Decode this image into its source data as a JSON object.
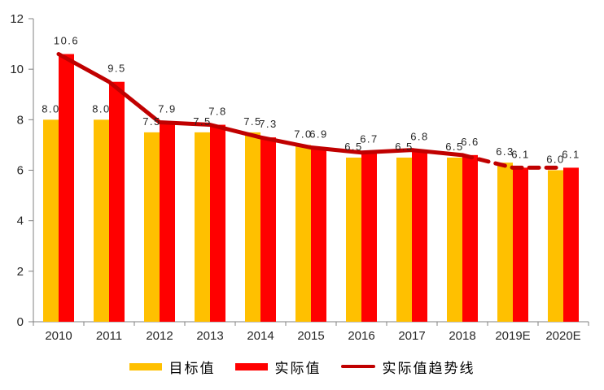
{
  "chart_data": {
    "type": "bar",
    "title": "",
    "xlabel": "",
    "ylabel": "",
    "categories": [
      "2010",
      "2011",
      "2012",
      "2013",
      "2014",
      "2015",
      "2016",
      "2017",
      "2018",
      "2019E",
      "2020E"
    ],
    "series": [
      {
        "id": "target-value",
        "name": "目标值",
        "kind": "bar",
        "color": "#FFC000",
        "values": [
          8.0,
          8.0,
          7.5,
          7.5,
          7.5,
          7.0,
          6.5,
          6.5,
          6.5,
          6.3,
          6.0
        ]
      },
      {
        "id": "actual-value",
        "name": "实际值",
        "kind": "bar",
        "color": "#FF0000",
        "values": [
          10.6,
          9.5,
          7.9,
          7.8,
          7.3,
          6.9,
          6.7,
          6.8,
          6.6,
          6.1,
          6.1
        ]
      },
      {
        "id": "actual-trendline",
        "name": "实际值趋势线",
        "kind": "line",
        "color": "#C00000",
        "values": [
          10.6,
          9.5,
          7.9,
          7.8,
          7.3,
          6.9,
          6.7,
          6.8,
          6.6,
          6.1,
          6.1
        ],
        "dashed_from_index": 8
      }
    ],
    "ylim": [
      0,
      12
    ],
    "yticks": [
      0,
      2,
      4,
      6,
      8,
      10,
      12
    ],
    "grid": false,
    "legend_position": "bottom",
    "value_label_decimals": 1
  },
  "colors": {
    "background": "#FFFFFF",
    "axis": "#808080",
    "tick_label": "#262626",
    "data_label": "#262626"
  }
}
